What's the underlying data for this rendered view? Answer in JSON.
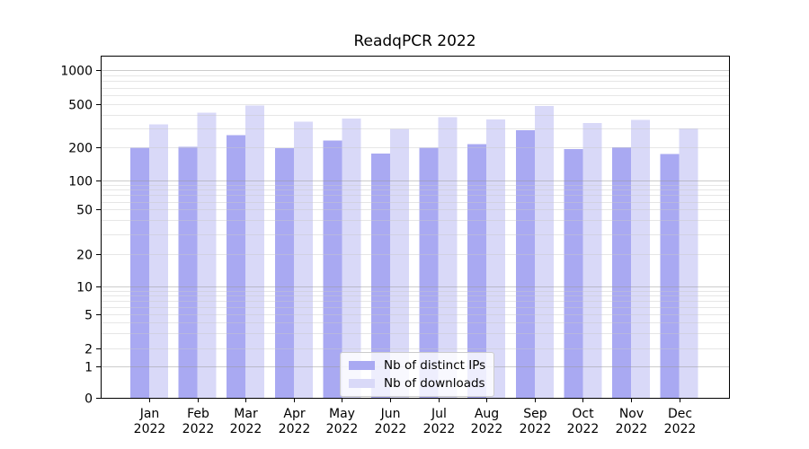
{
  "chart_data": {
    "type": "bar",
    "title": "ReadqPCR 2022",
    "categories": [
      "Jan",
      "Feb",
      "Mar",
      "Apr",
      "May",
      "Jun",
      "Jul",
      "Aug",
      "Sep",
      "Oct",
      "Nov",
      "Dec"
    ],
    "category_year": "2022",
    "series": [
      {
        "name": "Nb of distinct IPs",
        "color": "#a9a9f2",
        "values": [
          198,
          201,
          258,
          197,
          230,
          176,
          198,
          213,
          288,
          193,
          200,
          173
        ]
      },
      {
        "name": "Nb of downloads",
        "color": "#d9d9f8",
        "values": [
          325,
          417,
          487,
          345,
          368,
          296,
          380,
          360,
          483,
          336,
          358,
          300
        ]
      }
    ],
    "xlabel": "",
    "ylabel": "",
    "y_axis": {
      "scale": "symlog",
      "ticks": [
        0,
        1,
        2,
        5,
        10,
        20,
        50,
        100,
        200,
        500,
        1000
      ],
      "ylim": [
        0,
        1350
      ]
    },
    "grid": {
      "enabled": true,
      "major_on": [
        1,
        10,
        100,
        1000
      ],
      "minor_per_decade": [
        2,
        3,
        4,
        5,
        6,
        7,
        8,
        9
      ]
    },
    "legend": {
      "position": "lower-center",
      "entries": [
        "Nb of distinct IPs",
        "Nb of downloads"
      ]
    },
    "colors": {
      "bar_ips": "#a9a9f2",
      "bar_downloads": "#d9d9f8",
      "grid_major": "#9a9a9a",
      "grid_minor": "#c8c8c8",
      "axis": "#000000",
      "text": "#000000",
      "background": "#ffffff"
    }
  }
}
